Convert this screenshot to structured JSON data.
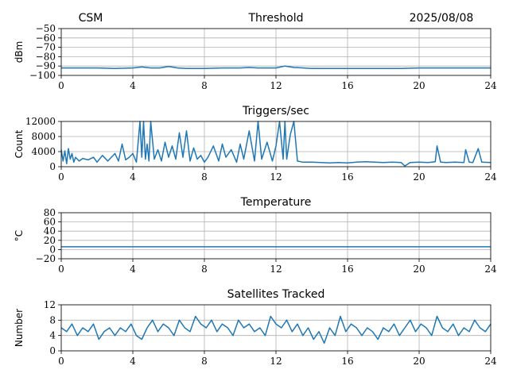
{
  "header": {
    "left": "CSM",
    "date": "2025/08/08"
  },
  "chart_data": [
    {
      "type": "line",
      "title": "Threshold",
      "xlabel": "",
      "ylabel": "dBm",
      "xlim": [
        0,
        24
      ],
      "ylim": [
        -100,
        -50
      ],
      "xticks": [
        0,
        4,
        8,
        12,
        16,
        20,
        24
      ],
      "yticks": [
        -100,
        -90,
        -80,
        -70,
        -60,
        -50
      ],
      "ytick_labels": [
        "−100",
        "−90",
        "−80",
        "−70",
        "−60",
        "−50"
      ],
      "grid": true,
      "series": [
        {
          "x": [
            0,
            1,
            2,
            3,
            4,
            4.5,
            5,
            5.5,
            6,
            6.5,
            7,
            8,
            9,
            10,
            10.5,
            11,
            12,
            12.5,
            13,
            14,
            15,
            16,
            17,
            18,
            19,
            20,
            21,
            22,
            23,
            24
          ],
          "y": [
            -92,
            -92,
            -92,
            -92.5,
            -92,
            -91,
            -92,
            -92,
            -90.5,
            -92,
            -92.5,
            -92.5,
            -92,
            -92,
            -91.5,
            -92,
            -92,
            -90,
            -91.5,
            -92.5,
            -92.5,
            -92.5,
            -92.5,
            -92.5,
            -92.5,
            -92,
            -92,
            -92,
            -92,
            -92
          ]
        }
      ]
    },
    {
      "type": "line",
      "title": "Triggers/sec",
      "xlabel": "",
      "ylabel": "Count",
      "xlim": [
        0,
        24
      ],
      "ylim": [
        0,
        12000
      ],
      "xticks": [
        0,
        4,
        8,
        12,
        16,
        20,
        24
      ],
      "yticks": [
        0,
        4000,
        8000,
        12000
      ],
      "ytick_labels": [
        "0",
        "4000",
        "8000",
        "12000"
      ],
      "grid": true,
      "series": [
        {
          "x": [
            0,
            0.1,
            0.2,
            0.3,
            0.4,
            0.5,
            0.6,
            0.7,
            0.8,
            1.0,
            1.2,
            1.5,
            1.8,
            2.0,
            2.3,
            2.6,
            3.0,
            3.2,
            3.4,
            3.6,
            3.8,
            4.0,
            4.2,
            4.4,
            4.5,
            4.6,
            4.7,
            4.8,
            4.9,
            5.0,
            5.2,
            5.4,
            5.6,
            5.8,
            6.0,
            6.2,
            6.4,
            6.6,
            6.8,
            7.0,
            7.2,
            7.4,
            7.6,
            7.8,
            8.0,
            8.2,
            8.5,
            8.8,
            9.0,
            9.2,
            9.5,
            9.8,
            10.0,
            10.2,
            10.5,
            10.8,
            11.0,
            11.2,
            11.5,
            11.8,
            12.0,
            12.2,
            12.4,
            12.5,
            12.6,
            12.8,
            13.0,
            13.2,
            13.5,
            14.0,
            14.5,
            15.0,
            15.5,
            16.0,
            16.5,
            17.0,
            17.5,
            18.0,
            18.5,
            19.0,
            19.2,
            19.5,
            20.0,
            20.5,
            20.9,
            21.0,
            21.2,
            21.5,
            22.0,
            22.5,
            22.6,
            22.8,
            23.0,
            23.3,
            23.5,
            24.0
          ],
          "y": [
            4500,
            1500,
            4200,
            800,
            4800,
            2000,
            3500,
            1200,
            2500,
            1500,
            2200,
            1800,
            2500,
            1200,
            3000,
            1500,
            3500,
            1500,
            6000,
            1800,
            2500,
            3500,
            1200,
            12500,
            2500,
            12500,
            2000,
            6000,
            1500,
            12500,
            2000,
            4500,
            1500,
            6500,
            2500,
            5500,
            2000,
            9000,
            2500,
            9500,
            1500,
            5000,
            2000,
            3000,
            1200,
            2500,
            5500,
            1500,
            6000,
            2500,
            4500,
            1200,
            6000,
            2000,
            9500,
            1500,
            12500,
            2000,
            6500,
            1500,
            5500,
            12500,
            2000,
            12500,
            2000,
            8500,
            12500,
            1500,
            1200,
            1200,
            1100,
            1000,
            1100,
            1000,
            1200,
            1300,
            1200,
            1100,
            1200,
            1100,
            200,
            1100,
            1200,
            1100,
            1300,
            5500,
            1200,
            1100,
            1200,
            1100,
            4500,
            1200,
            1100,
            4800,
            1200,
            1100
          ]
        }
      ]
    },
    {
      "type": "line",
      "title": "Temperature",
      "xlabel": "",
      "ylabel": "°C",
      "xlim": [
        0,
        24
      ],
      "ylim": [
        -20,
        80
      ],
      "xticks": [
        0,
        4,
        8,
        12,
        16,
        20,
        24
      ],
      "yticks": [
        -20,
        0,
        20,
        40,
        60,
        80
      ],
      "ytick_labels": [
        "−20",
        "0",
        "20",
        "40",
        "60",
        "80"
      ],
      "grid": true,
      "series": [
        {
          "x": [
            0,
            24
          ],
          "y": [
            6,
            6
          ]
        }
      ]
    },
    {
      "type": "line",
      "title": "Satellites Tracked",
      "xlabel": "",
      "ylabel": "Number",
      "xlim": [
        0,
        24
      ],
      "ylim": [
        0,
        12
      ],
      "xticks": [
        0,
        4,
        8,
        12,
        16,
        20,
        24
      ],
      "yticks": [
        0,
        4,
        8,
        12
      ],
      "ytick_labels": [
        "0",
        "4",
        "8",
        "12"
      ],
      "grid": true,
      "series": [
        {
          "x": [
            0,
            0.3,
            0.6,
            0.9,
            1.2,
            1.5,
            1.8,
            2.1,
            2.4,
            2.7,
            3.0,
            3.3,
            3.6,
            3.9,
            4.2,
            4.5,
            4.8,
            5.1,
            5.4,
            5.7,
            6.0,
            6.3,
            6.6,
            6.9,
            7.2,
            7.5,
            7.8,
            8.1,
            8.4,
            8.7,
            9.0,
            9.3,
            9.6,
            9.9,
            10.2,
            10.5,
            10.8,
            11.1,
            11.4,
            11.7,
            12.0,
            12.3,
            12.6,
            12.9,
            13.2,
            13.5,
            13.8,
            14.1,
            14.4,
            14.7,
            15.0,
            15.3,
            15.6,
            15.9,
            16.2,
            16.5,
            16.8,
            17.1,
            17.4,
            17.7,
            18.0,
            18.3,
            18.6,
            18.9,
            19.2,
            19.5,
            19.8,
            20.1,
            20.4,
            20.7,
            21.0,
            21.3,
            21.6,
            21.9,
            22.2,
            22.5,
            22.8,
            23.1,
            23.4,
            23.7,
            24.0
          ],
          "y": [
            6,
            5,
            7,
            4,
            6,
            5,
            7,
            3,
            5,
            6,
            4,
            6,
            5,
            7,
            4,
            3,
            6,
            8,
            5,
            7,
            6,
            4,
            8,
            6,
            5,
            9,
            7,
            6,
            8,
            5,
            7,
            6,
            4,
            8,
            6,
            7,
            5,
            6,
            4,
            9,
            7,
            6,
            8,
            5,
            7,
            4,
            6,
            3,
            5,
            2,
            6,
            4,
            9,
            5,
            7,
            6,
            4,
            6,
            5,
            3,
            6,
            5,
            7,
            4,
            6,
            8,
            5,
            7,
            6,
            4,
            9,
            6,
            5,
            7,
            4,
            6,
            5,
            8,
            6,
            5,
            7
          ]
        }
      ]
    }
  ]
}
